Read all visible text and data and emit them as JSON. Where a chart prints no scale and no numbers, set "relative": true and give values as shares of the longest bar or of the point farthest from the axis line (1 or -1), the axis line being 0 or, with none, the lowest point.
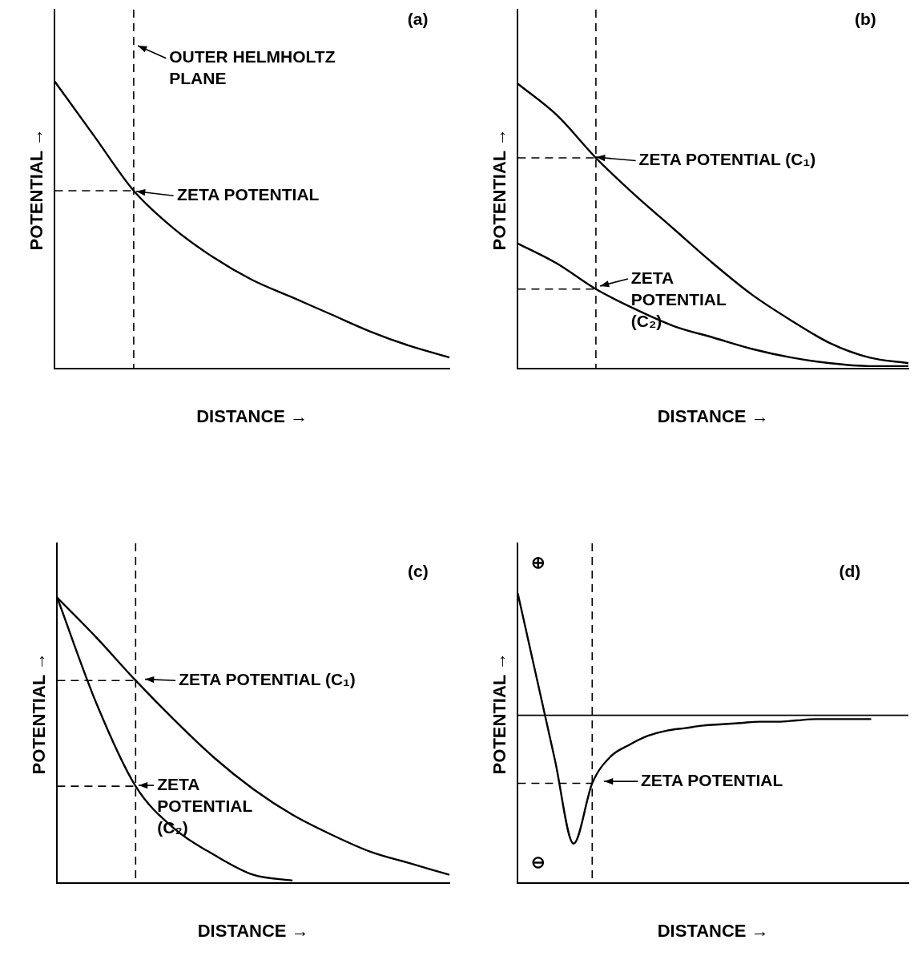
{
  "chart_data": [
    {
      "type": "line",
      "title": "(a)",
      "xlabel": "DISTANCE →",
      "ylabel": "POTENTIAL →",
      "relative": true,
      "line_style": "solid",
      "categories": [
        null,
        null,
        null,
        null,
        null,
        null,
        null,
        null,
        null,
        null,
        null
      ],
      "series": [
        {
          "color": "#000000",
          "values": [
            1,
            0.81,
            0.62,
            0.49,
            0.39,
            0.31,
            0.25,
            0.19,
            0.13,
            0.08,
            0.04
          ]
        }
      ],
      "ref_lines": [
        {
          "axis": "y",
          "value": 0.62,
          "line_style": "dashed"
        }
      ],
      "annotations": [
        "OUTER HELMHOLTZ PLANE",
        "ZETA POTENTIAL"
      ]
    },
    {
      "type": "line",
      "title": "(b)",
      "xlabel": "DISTANCE →",
      "ylabel": "POTENTIAL →",
      "relative": true,
      "line_style": "solid",
      "categories": [
        null,
        null,
        null,
        null,
        null,
        null,
        null,
        null,
        null,
        null,
        null
      ],
      "series": [
        {
          "color": "#000000",
          "values": [
            1,
            0.89,
            0.74,
            0.61,
            0.49,
            0.37,
            0.26,
            0.17,
            0.09,
            0.04,
            0.02
          ]
        },
        {
          "color": "#000000",
          "values": [
            0.44,
            0.37,
            0.28,
            0.21,
            0.15,
            0.11,
            0.07,
            0.04,
            0.02,
            0.01,
            0.01
          ]
        }
      ],
      "ref_lines": [
        {
          "axis": "y",
          "value": 0.74,
          "line_style": "dashed"
        },
        {
          "axis": "y",
          "value": 0.28,
          "line_style": "dashed"
        }
      ],
      "annotations": [
        "ZETA POTENTIAL (C₁)",
        "ZETA POTENTIAL (C₂)"
      ]
    },
    {
      "type": "line",
      "title": "(c)",
      "xlabel": "DISTANCE →",
      "ylabel": "POTENTIAL →",
      "relative": true,
      "line_style": "solid",
      "categories": [
        null,
        null,
        null,
        null,
        null,
        null,
        null,
        null,
        null,
        null,
        null
      ],
      "series": [
        {
          "color": "#000000",
          "values": [
            1,
            0.86,
            0.71,
            0.57,
            0.44,
            0.33,
            0.24,
            0.17,
            0.11,
            0.07,
            0.03
          ]
        },
        {
          "color": "#000000",
          "values": [
            1,
            0.63,
            0.34,
            0.19,
            0.1,
            0.03,
            0.01,
            null,
            null,
            null,
            null
          ]
        }
      ],
      "ref_lines": [
        {
          "axis": "y",
          "value": 0.71,
          "line_style": "dashed"
        },
        {
          "axis": "y",
          "value": 0.34,
          "line_style": "dashed"
        }
      ],
      "annotations": [
        "ZETA POTENTIAL (C₁)",
        "ZETA POTENTIAL (C₂)"
      ]
    },
    {
      "type": "line",
      "title": "(d)",
      "xlabel": "DISTANCE →",
      "ylabel": "POTENTIAL →",
      "relative": true,
      "line_style": "solid",
      "categories": [
        null,
        null,
        null,
        null,
        null,
        null,
        null,
        null,
        null,
        null,
        null,
        null,
        null,
        null,
        null,
        null,
        null,
        null,
        null,
        null,
        null,
        null
      ],
      "series": [
        {
          "color": "#000000",
          "values": [
            0.95,
            0.3,
            -0.35,
            -1,
            -0.53,
            -0.32,
            -0.23,
            -0.16,
            -0.12,
            -0.1,
            -0.08,
            -0.07,
            -0.06,
            -0.05,
            -0.05,
            -0.04,
            -0.03,
            -0.03,
            -0.03,
            -0.03,
            null,
            null
          ]
        }
      ],
      "ref_lines": [
        {
          "axis": "y",
          "value": 0,
          "line_style": "solid"
        },
        {
          "axis": "y",
          "value": -0.53,
          "line_style": "dashed"
        }
      ],
      "annotations": [
        "⊕",
        "⊖",
        "ZETA POTENTIAL"
      ]
    }
  ]
}
